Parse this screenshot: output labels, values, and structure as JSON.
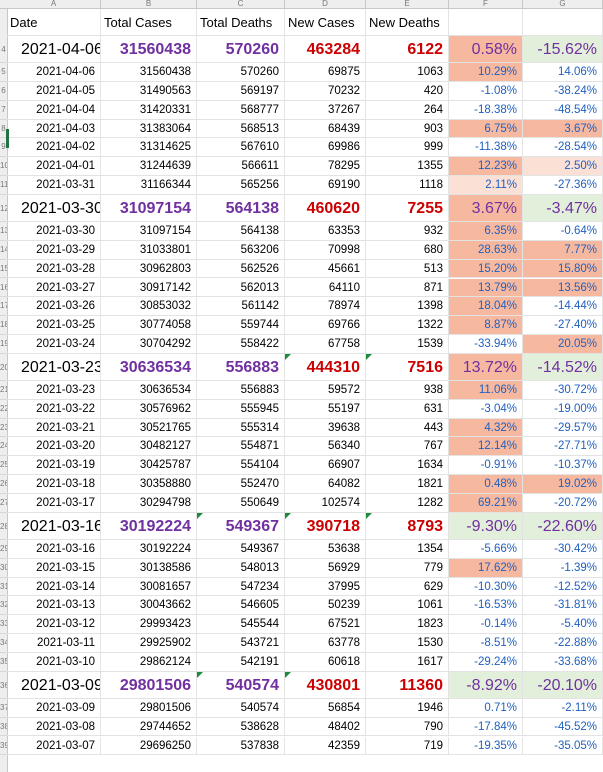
{
  "columns": [
    "A",
    "B",
    "C",
    "D",
    "E",
    "F",
    "G"
  ],
  "headers": [
    "Date",
    "Total Cases",
    "Total Deaths",
    "New Cases",
    "New Deaths",
    "",
    ""
  ],
  "colors": {
    "up_strong": "#f7b8a0",
    "up_light": "#fbe0d6",
    "down": "#e2efda",
    "summary_purple": "#7030a0",
    "summary_red": "#cc0000",
    "pct_blue": "#2060c0"
  },
  "rows": [
    {
      "row_label": "4",
      "kind": "big",
      "cells": [
        "2021-04-06",
        "31560438",
        "570260",
        "463284",
        "6122",
        "0.58%",
        "-15.62%"
      ],
      "f_fill": "#f7b8a0",
      "g_fill": "#e2efda"
    },
    {
      "row_label": "5",
      "kind": "small",
      "cells": [
        "2021-04-06",
        "31560438",
        "570260",
        "69875",
        "1063",
        "10.29%",
        "14.06%"
      ],
      "f_fill": "#f7b8a0",
      "g_fill": ""
    },
    {
      "row_label": "6",
      "kind": "small",
      "cells": [
        "2021-04-05",
        "31490563",
        "569197",
        "70232",
        "420",
        "-1.08%",
        "-38.24%"
      ],
      "f_fill": "",
      "g_fill": ""
    },
    {
      "row_label": "7",
      "kind": "small",
      "cells": [
        "2021-04-04",
        "31420331",
        "568777",
        "37267",
        "264",
        "-18.38%",
        "-48.54%"
      ],
      "f_fill": "",
      "g_fill": ""
    },
    {
      "row_label": "8",
      "kind": "small",
      "cells": [
        "2021-04-03",
        "31383064",
        "568513",
        "68439",
        "903",
        "6.75%",
        "3.67%"
      ],
      "f_fill": "#f7b8a0",
      "g_fill": "#f7b8a0"
    },
    {
      "row_label": "9",
      "kind": "small",
      "cells": [
        "2021-04-02",
        "31314625",
        "567610",
        "69986",
        "999",
        "-11.38%",
        "-28.54%"
      ],
      "f_fill": "",
      "g_fill": ""
    },
    {
      "row_label": "10",
      "kind": "small",
      "cells": [
        "2021-04-01",
        "31244639",
        "566611",
        "78295",
        "1355",
        "12.23%",
        "2.50%"
      ],
      "f_fill": "#f7b8a0",
      "g_fill": "#fbe0d6"
    },
    {
      "row_label": "11",
      "kind": "small",
      "cells": [
        "2021-03-31",
        "31166344",
        "565256",
        "69190",
        "1118",
        "2.11%",
        "-27.36%"
      ],
      "f_fill": "#fbe0d6",
      "g_fill": ""
    },
    {
      "row_label": "12",
      "kind": "big",
      "cells": [
        "2021-03-30",
        "31097154",
        "564138",
        "460620",
        "7255",
        "3.67%",
        "-3.47%"
      ],
      "f_fill": "#f7b8a0",
      "g_fill": "#e2efda"
    },
    {
      "row_label": "13",
      "kind": "small",
      "cells": [
        "2021-03-30",
        "31097154",
        "564138",
        "63353",
        "932",
        "6.35%",
        "-0.64%"
      ],
      "f_fill": "#f7b8a0",
      "g_fill": ""
    },
    {
      "row_label": "14",
      "kind": "small",
      "cells": [
        "2021-03-29",
        "31033801",
        "563206",
        "70998",
        "680",
        "28.63%",
        "7.77%"
      ],
      "f_fill": "#f7b8a0",
      "g_fill": "#f7b8a0"
    },
    {
      "row_label": "15",
      "kind": "small",
      "cells": [
        "2021-03-28",
        "30962803",
        "562526",
        "45661",
        "513",
        "15.20%",
        "15.80%"
      ],
      "f_fill": "#f7b8a0",
      "g_fill": "#f7b8a0"
    },
    {
      "row_label": "16",
      "kind": "small",
      "cells": [
        "2021-03-27",
        "30917142",
        "562013",
        "64110",
        "871",
        "13.79%",
        "13.56%"
      ],
      "f_fill": "#f7b8a0",
      "g_fill": "#f7b8a0"
    },
    {
      "row_label": "17",
      "kind": "small",
      "cells": [
        "2021-03-26",
        "30853032",
        "561142",
        "78974",
        "1398",
        "18.04%",
        "-14.44%"
      ],
      "f_fill": "#f7b8a0",
      "g_fill": ""
    },
    {
      "row_label": "18",
      "kind": "small",
      "cells": [
        "2021-03-25",
        "30774058",
        "559744",
        "69766",
        "1322",
        "8.87%",
        "-27.40%"
      ],
      "f_fill": "#f7b8a0",
      "g_fill": ""
    },
    {
      "row_label": "19",
      "kind": "small",
      "cells": [
        "2021-03-24",
        "30704292",
        "558422",
        "67758",
        "1539",
        "-33.94%",
        "20.05%"
      ],
      "f_fill": "",
      "g_fill": "#f7b8a0"
    },
    {
      "row_label": "20",
      "kind": "big",
      "cells": [
        "2021-03-23",
        "30636534",
        "556883",
        "444310",
        "7516",
        "13.72%",
        "-14.52%"
      ],
      "f_fill": "#f7b8a0",
      "g_fill": "#e2efda",
      "tri": [
        3,
        4
      ]
    },
    {
      "row_label": "21",
      "kind": "small",
      "cells": [
        "2021-03-23",
        "30636534",
        "556883",
        "59572",
        "938",
        "11.06%",
        "-30.72%"
      ],
      "f_fill": "#f7b8a0",
      "g_fill": ""
    },
    {
      "row_label": "22",
      "kind": "small",
      "cells": [
        "2021-03-22",
        "30576962",
        "555945",
        "55197",
        "631",
        "-3.04%",
        "-19.00%"
      ],
      "f_fill": "",
      "g_fill": ""
    },
    {
      "row_label": "23",
      "kind": "small",
      "cells": [
        "2021-03-21",
        "30521765",
        "555314",
        "39638",
        "443",
        "4.32%",
        "-29.57%"
      ],
      "f_fill": "#f7b8a0",
      "g_fill": ""
    },
    {
      "row_label": "24",
      "kind": "small",
      "cells": [
        "2021-03-20",
        "30482127",
        "554871",
        "56340",
        "767",
        "12.14%",
        "-27.71%"
      ],
      "f_fill": "#f7b8a0",
      "g_fill": ""
    },
    {
      "row_label": "25",
      "kind": "small",
      "cells": [
        "2021-03-19",
        "30425787",
        "554104",
        "66907",
        "1634",
        "-0.91%",
        "-10.37%"
      ],
      "f_fill": "",
      "g_fill": ""
    },
    {
      "row_label": "26",
      "kind": "small",
      "cells": [
        "2021-03-18",
        "30358880",
        "552470",
        "64082",
        "1821",
        "0.48%",
        "19.02%"
      ],
      "f_fill": "#f7b8a0",
      "g_fill": "#f7b8a0"
    },
    {
      "row_label": "27",
      "kind": "small",
      "cells": [
        "2021-03-17",
        "30294798",
        "550649",
        "102574",
        "1282",
        "69.21%",
        "-20.72%"
      ],
      "f_fill": "#f7b8a0",
      "g_fill": ""
    },
    {
      "row_label": "28",
      "kind": "big",
      "cells": [
        "2021-03-16",
        "30192224",
        "549367",
        "390718",
        "8793",
        "-9.30%",
        "-22.60%"
      ],
      "f_fill": "#e2efda",
      "g_fill": "#e2efda",
      "tri": [
        2,
        3,
        4
      ]
    },
    {
      "row_label": "29",
      "kind": "small",
      "cells": [
        "2021-03-16",
        "30192224",
        "549367",
        "53638",
        "1354",
        "-5.66%",
        "-30.42%"
      ],
      "f_fill": "",
      "g_fill": ""
    },
    {
      "row_label": "30",
      "kind": "small",
      "cells": [
        "2021-03-15",
        "30138586",
        "548013",
        "56929",
        "779",
        "17.62%",
        "-1.39%"
      ],
      "f_fill": "#f7b8a0",
      "g_fill": ""
    },
    {
      "row_label": "31",
      "kind": "small",
      "cells": [
        "2021-03-14",
        "30081657",
        "547234",
        "37995",
        "629",
        "-10.30%",
        "-12.52%"
      ],
      "f_fill": "",
      "g_fill": ""
    },
    {
      "row_label": "32",
      "kind": "small",
      "cells": [
        "2021-03-13",
        "30043662",
        "546605",
        "50239",
        "1061",
        "-16.53%",
        "-31.81%"
      ],
      "f_fill": "",
      "g_fill": ""
    },
    {
      "row_label": "33",
      "kind": "small",
      "cells": [
        "2021-03-12",
        "29993423",
        "545544",
        "67521",
        "1823",
        "-0.14%",
        "-5.40%"
      ],
      "f_fill": "",
      "g_fill": ""
    },
    {
      "row_label": "34",
      "kind": "small",
      "cells": [
        "2021-03-11",
        "29925902",
        "543721",
        "63778",
        "1530",
        "-8.51%",
        "-22.88%"
      ],
      "f_fill": "",
      "g_fill": ""
    },
    {
      "row_label": "35",
      "kind": "small",
      "cells": [
        "2021-03-10",
        "29862124",
        "542191",
        "60618",
        "1617",
        "-29.24%",
        "-33.68%"
      ],
      "f_fill": "",
      "g_fill": ""
    },
    {
      "row_label": "36",
      "kind": "big",
      "cells": [
        "2021-03-09",
        "29801506",
        "540574",
        "430801",
        "11360",
        "-8.92%",
        "-20.10%"
      ],
      "f_fill": "#e2efda",
      "g_fill": "#e2efda",
      "tri": [
        2,
        3
      ]
    },
    {
      "row_label": "37",
      "kind": "small",
      "cells": [
        "2021-03-09",
        "29801506",
        "540574",
        "56854",
        "1946",
        "0.71%",
        "-2.11%"
      ],
      "f_fill": "",
      "g_fill": ""
    },
    {
      "row_label": "38",
      "kind": "small",
      "cells": [
        "2021-03-08",
        "29744652",
        "538628",
        "48402",
        "790",
        "-17.84%",
        "-45.52%"
      ],
      "f_fill": "",
      "g_fill": ""
    },
    {
      "row_label": "39",
      "kind": "small",
      "cells": [
        "2021-03-07",
        "29696250",
        "537838",
        "42359",
        "719",
        "-19.35%",
        "-35.05%"
      ],
      "f_fill": "",
      "g_fill": ""
    }
  ]
}
